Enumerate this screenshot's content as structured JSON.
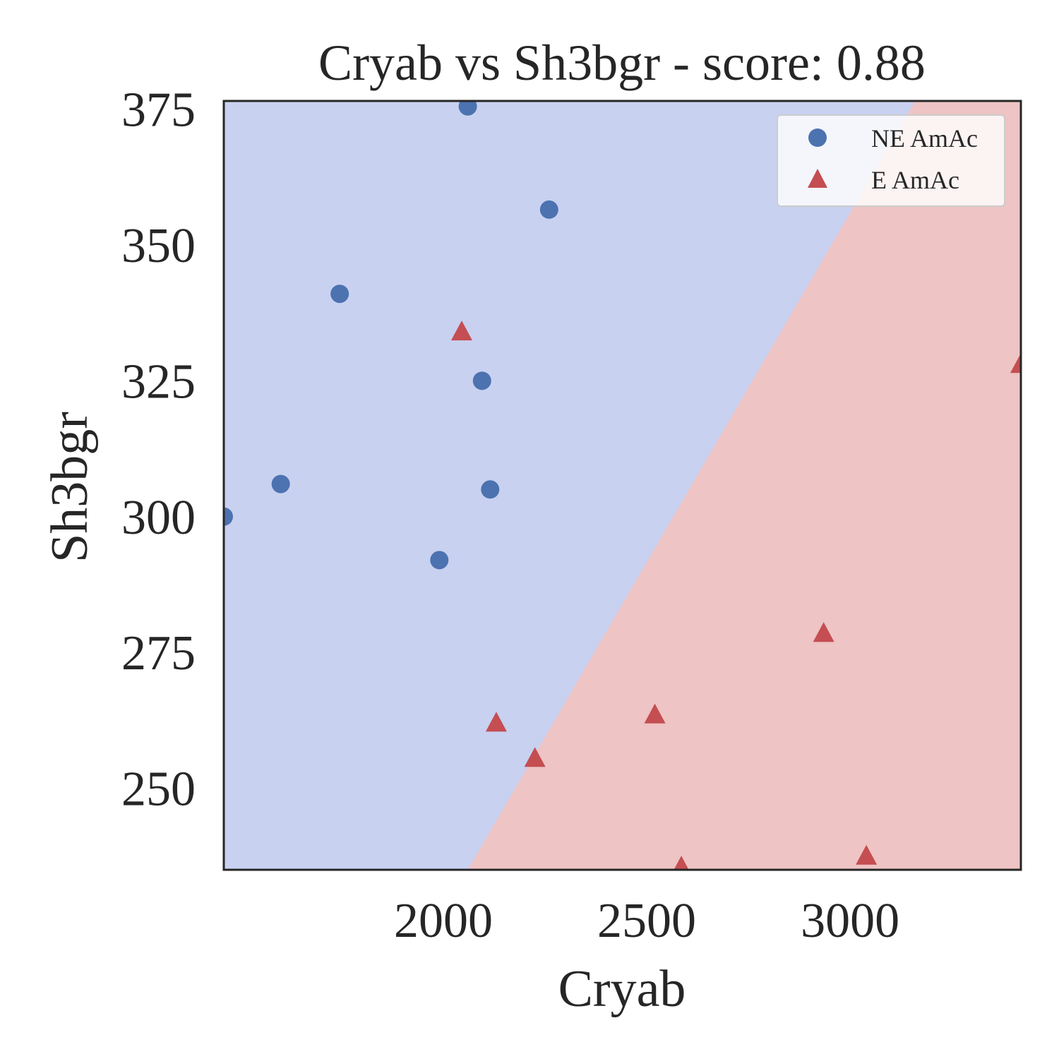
{
  "chart_data": {
    "type": "scatter",
    "title": "Cryab vs Sh3bgr - score: 0.88",
    "xlabel": "Cryab",
    "ylabel": "Sh3bgr",
    "xlim": [
      1460,
      3420
    ],
    "ylim": [
      235,
      376.5
    ],
    "x_ticks": [
      2000,
      2500,
      3000
    ],
    "y_ticks": [
      250,
      275,
      300,
      325,
      350,
      375
    ],
    "grid": false,
    "legend_position": "top-right",
    "decision_boundary": {
      "points": [
        [
          2060,
          235
        ],
        [
          3160,
          376.5
        ]
      ],
      "region_colors": {
        "NE AmAc": "#c9d1f0",
        "E AmAc": "#eec4c4"
      }
    },
    "series": [
      {
        "name": "NE AmAc",
        "marker": "circle",
        "color": "#4c72b0",
        "points": [
          [
            2060,
            375.5
          ],
          [
            2260,
            356.5
          ],
          [
            1745,
            341
          ],
          [
            2095,
            325
          ],
          [
            1600,
            306
          ],
          [
            2115,
            305
          ],
          [
            1460,
            300
          ],
          [
            1990,
            292
          ]
        ]
      },
      {
        "name": "E AmAc",
        "marker": "triangle",
        "color": "#c44e52",
        "points": [
          [
            2045,
            334
          ],
          [
            2130,
            262
          ],
          [
            2225,
            255.5
          ],
          [
            2520,
            263.5
          ],
          [
            2585,
            235.5
          ],
          [
            2935,
            278.5
          ],
          [
            3040,
            237.5
          ],
          [
            3420,
            328
          ]
        ]
      }
    ]
  }
}
